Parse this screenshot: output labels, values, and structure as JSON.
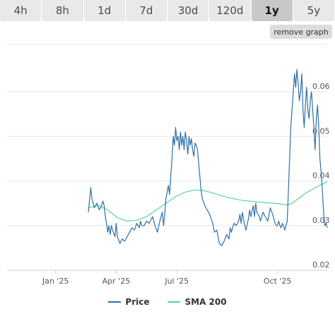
{
  "tabs": [
    {
      "label": "4h",
      "active": false
    },
    {
      "label": "8h",
      "active": false
    },
    {
      "label": "1d",
      "active": false
    },
    {
      "label": "7d",
      "active": false
    },
    {
      "label": "30d",
      "active": false
    },
    {
      "label": "120d",
      "active": false
    },
    {
      "label": "1y",
      "active": true
    },
    {
      "label": "5y",
      "active": false
    }
  ],
  "remove_graph_label": "remove graph",
  "colors": {
    "price": "#2f6fa8",
    "sma": "#5bd49a",
    "grid": "#e6e6e6"
  },
  "chart_data": {
    "type": "line",
    "x_ticks": [
      "Jan '25",
      "Apr '25",
      "Jul '25",
      "Oct '25"
    ],
    "y_ticks": [
      "0.02",
      "0.03",
      "0.04",
      "0.05",
      "0.06"
    ],
    "ylim": [
      0.02,
      0.0706
    ],
    "legend_position": "bottom",
    "series": [
      {
        "name": "Price",
        "values": [
          [
            0,
            0.033
          ],
          [
            2,
            0.0385
          ],
          [
            3,
            0.036
          ],
          [
            5,
            0.034
          ],
          [
            7,
            0.035
          ],
          [
            9,
            0.0335
          ],
          [
            11,
            0.0345
          ],
          [
            12,
            0.0355
          ],
          [
            13,
            0.0345
          ],
          [
            14,
            0.032
          ],
          [
            15,
            0.0305
          ],
          [
            16,
            0.0285
          ],
          [
            17,
            0.03
          ],
          [
            18,
            0.028
          ],
          [
            19,
            0.03
          ],
          [
            20,
            0.029
          ],
          [
            22,
            0.0275
          ],
          [
            23,
            0.0305
          ],
          [
            24,
            0.0275
          ],
          [
            26,
            0.026
          ],
          [
            28,
            0.027
          ],
          [
            30,
            0.0265
          ],
          [
            32,
            0.0275
          ],
          [
            34,
            0.0285
          ],
          [
            36,
            0.0295
          ],
          [
            38,
            0.029
          ],
          [
            40,
            0.0305
          ],
          [
            42,
            0.0295
          ],
          [
            43,
            0.031
          ],
          [
            44,
            0.03
          ],
          [
            46,
            0.03
          ],
          [
            48,
            0.031
          ],
          [
            50,
            0.0305
          ],
          [
            52,
            0.0315
          ],
          [
            53,
            0.032
          ],
          [
            55,
            0.03
          ],
          [
            57,
            0.0285
          ],
          [
            59,
            0.031
          ],
          [
            61,
            0.033
          ],
          [
            62,
            0.03
          ],
          [
            63,
            0.0325
          ],
          [
            64,
            0.036
          ],
          [
            66,
            0.039
          ],
          [
            67,
            0.037
          ],
          [
            68,
            0.041
          ],
          [
            69,
            0.045
          ],
          [
            70,
            0.05
          ],
          [
            71,
            0.048
          ],
          [
            72,
            0.052
          ],
          [
            73,
            0.049
          ],
          [
            74,
            0.05
          ],
          [
            75,
            0.047
          ],
          [
            76,
            0.051
          ],
          [
            77,
            0.048
          ],
          [
            78,
            0.05
          ],
          [
            79,
            0.047
          ],
          [
            80,
            0.051
          ],
          [
            81,
            0.049
          ],
          [
            82,
            0.046
          ],
          [
            83,
            0.05
          ],
          [
            84,
            0.048
          ],
          [
            85,
            0.0495
          ],
          [
            86,
            0.047
          ],
          [
            87,
            0.0455
          ],
          [
            88,
            0.0485
          ],
          [
            89,
            0.048
          ],
          [
            90,
            0.047
          ],
          [
            91,
            0.044
          ],
          [
            92,
            0.041
          ],
          [
            93,
            0.038
          ],
          [
            94,
            0.036
          ],
          [
            96,
            0.0345
          ],
          [
            98,
            0.0335
          ],
          [
            100,
            0.0325
          ],
          [
            102,
            0.031
          ],
          [
            103,
            0.03
          ],
          [
            104,
            0.0285
          ],
          [
            106,
            0.029
          ],
          [
            107,
            0.0275
          ],
          [
            108,
            0.026
          ],
          [
            110,
            0.0255
          ],
          [
            112,
            0.0265
          ],
          [
            114,
            0.028
          ],
          [
            116,
            0.027
          ],
          [
            117,
            0.0295
          ],
          [
            118,
            0.0285
          ],
          [
            120,
            0.0305
          ],
          [
            122,
            0.03
          ],
          [
            124,
            0.031
          ],
          [
            125,
            0.0325
          ],
          [
            126,
            0.0305
          ],
          [
            127,
            0.033
          ],
          [
            128,
            0.0315
          ],
          [
            129,
            0.03
          ],
          [
            130,
            0.029
          ],
          [
            132,
            0.0315
          ],
          [
            133,
            0.0335
          ],
          [
            134,
            0.032
          ],
          [
            136,
            0.0345
          ],
          [
            137,
            0.032
          ],
          [
            138,
            0.035
          ],
          [
            139,
            0.033
          ],
          [
            141,
            0.032
          ],
          [
            142,
            0.031
          ],
          [
            144,
            0.033
          ],
          [
            146,
            0.032
          ],
          [
            148,
            0.031
          ],
          [
            150,
            0.034
          ],
          [
            152,
            0.0325
          ],
          [
            153,
            0.0315
          ],
          [
            154,
            0.0305
          ],
          [
            155,
            0.03
          ],
          [
            156,
            0.03
          ],
          [
            157,
            0.031
          ],
          [
            158,
            0.03
          ],
          [
            159,
            0.0295
          ],
          [
            160,
            0.0305
          ],
          [
            161,
            0.03
          ],
          [
            162,
            0.029
          ],
          [
            163,
            0.03
          ],
          [
            164,
            0.031
          ],
          [
            165,
            0.038
          ],
          [
            166,
            0.045
          ],
          [
            167,
            0.052
          ],
          [
            168,
            0.056
          ],
          [
            169,
            0.06
          ],
          [
            170,
            0.064
          ],
          [
            171,
            0.061
          ],
          [
            172,
            0.065
          ],
          [
            173,
            0.062
          ],
          [
            174,
            0.058
          ],
          [
            175,
            0.06
          ],
          [
            176,
            0.064
          ],
          [
            177,
            0.056
          ],
          [
            178,
            0.052
          ],
          [
            179,
            0.057
          ],
          [
            180,
            0.061
          ],
          [
            181,
            0.056
          ],
          [
            182,
            0.054
          ],
          [
            183,
            0.058
          ],
          [
            184,
            0.06
          ],
          [
            185,
            0.056
          ],
          [
            186,
            0.052
          ],
          [
            187,
            0.047
          ],
          [
            188,
            0.054
          ],
          [
            189,
            0.057
          ],
          [
            190,
            0.052
          ],
          [
            191,
            0.045
          ],
          [
            192,
            0.042
          ],
          [
            193,
            0.038
          ],
          [
            194,
            0.033
          ],
          [
            195,
            0.03
          ],
          [
            196,
            0.0305
          ],
          [
            197,
            0.0295
          ]
        ]
      },
      {
        "name": "SMA 200",
        "values": [
          [
            0,
            0.034
          ],
          [
            8,
            0.0345
          ],
          [
            16,
            0.0335
          ],
          [
            24,
            0.0318
          ],
          [
            32,
            0.031
          ],
          [
            40,
            0.0312
          ],
          [
            48,
            0.032
          ],
          [
            56,
            0.0335
          ],
          [
            64,
            0.035
          ],
          [
            72,
            0.0365
          ],
          [
            80,
            0.0375
          ],
          [
            88,
            0.038
          ],
          [
            96,
            0.0378
          ],
          [
            104,
            0.0372
          ],
          [
            112,
            0.0365
          ],
          [
            120,
            0.036
          ],
          [
            128,
            0.0356
          ],
          [
            136,
            0.0354
          ],
          [
            144,
            0.0352
          ],
          [
            152,
            0.035
          ],
          [
            160,
            0.0348
          ],
          [
            164,
            0.0346
          ],
          [
            168,
            0.035
          ],
          [
            172,
            0.0358
          ],
          [
            176,
            0.0366
          ],
          [
            180,
            0.0374
          ],
          [
            184,
            0.038
          ],
          [
            188,
            0.0386
          ],
          [
            192,
            0.0392
          ],
          [
            197,
            0.0398
          ]
        ]
      }
    ]
  }
}
